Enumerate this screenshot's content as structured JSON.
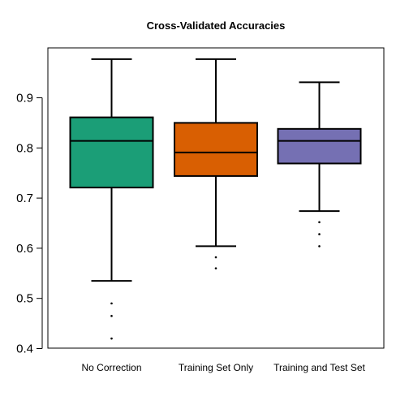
{
  "chart_data": {
    "type": "box",
    "title": "Cross-Validated Accuracies",
    "xlabel": "",
    "ylabel": "",
    "ylim": [
      0.4,
      0.98
    ],
    "yticks": [
      0.4,
      0.5,
      0.6,
      0.7,
      0.8,
      0.9
    ],
    "ytick_labels": [
      "0.4",
      "0.5",
      "0.6",
      "0.7",
      "0.8",
      "0.9"
    ],
    "grid": false,
    "legend": "none",
    "categories": [
      "No Correction",
      "Training Set Only",
      "Training and Test Set"
    ],
    "series": [
      {
        "whisker_low": 0.535,
        "q1": 0.721,
        "median": 0.814,
        "q3": 0.861,
        "whisker_high": 0.977,
        "outliers": [
          0.49,
          0.465,
          0.42
        ],
        "color": "#1b9e77"
      },
      {
        "whisker_low": 0.604,
        "q1": 0.744,
        "median": 0.791,
        "q3": 0.85,
        "whisker_high": 0.977,
        "outliers": [
          0.582,
          0.56
        ],
        "color": "#d95f02"
      },
      {
        "whisker_low": 0.674,
        "q1": 0.769,
        "median": 0.814,
        "q3": 0.838,
        "whisker_high": 0.931,
        "outliers": [
          0.652,
          0.628,
          0.604
        ],
        "color": "#7570b3"
      }
    ]
  }
}
